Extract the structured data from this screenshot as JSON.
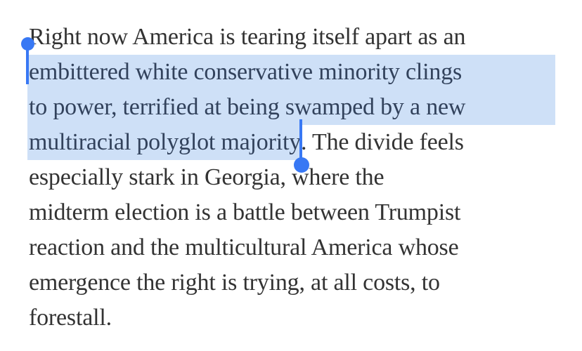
{
  "colors": {
    "background": "#ffffff",
    "text": "#333333",
    "selection_highlight": "#cee0f7",
    "selected_text": "#32425c",
    "selection_handle": "#3878f4"
  },
  "selection": {
    "selected_passage": "embittered white conservative minority clings to power, terrified at being swamped by a new multiracial polyglot majority"
  },
  "paragraph": {
    "lines": [
      {
        "text": "Right now America is tearing itself apart as an",
        "selected": "none"
      },
      {
        "text": "embittered white conservative minority clings",
        "selected": "full",
        "handle": "start"
      },
      {
        "text": "to power, terrified at being swamped by a new",
        "selected": "full"
      },
      {
        "selected": "partial",
        "selected_text": "multiracial polyglot majority",
        "after_text": ". The divide feels",
        "handle": "end"
      },
      {
        "text": "especially stark in Georgia, where the",
        "selected": "none"
      },
      {
        "text": "midterm election is a battle between Trumpist",
        "selected": "none"
      },
      {
        "text": "reaction and the multicultural America whose",
        "selected": "none"
      },
      {
        "text": "emergence the right is trying, at all costs, to",
        "selected": "none"
      },
      {
        "text": "forestall.",
        "selected": "none"
      }
    ]
  }
}
